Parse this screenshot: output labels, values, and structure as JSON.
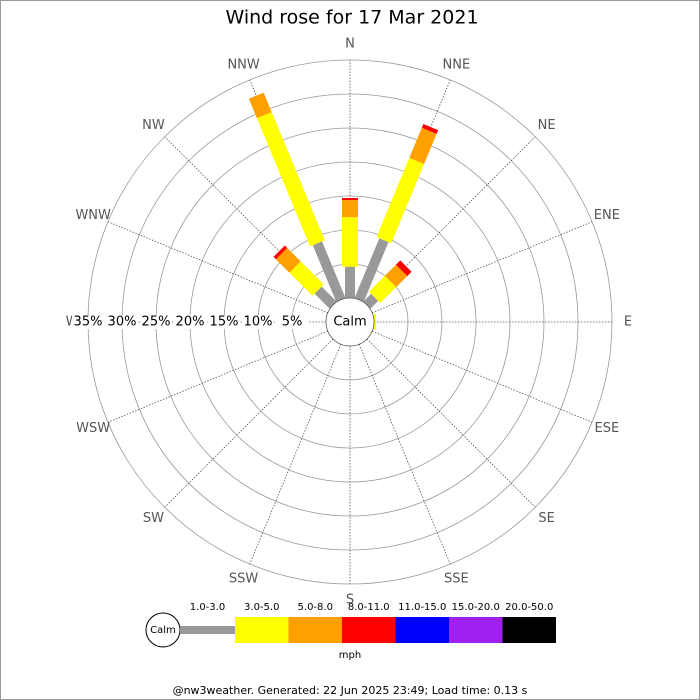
{
  "chart_data": {
    "type": "windrose",
    "title": "Wind rose for 17 Mar 2021",
    "categories": [
      "N",
      "NNE",
      "NE",
      "ENE",
      "E",
      "ESE",
      "SE",
      "SSE",
      "S",
      "SSW",
      "SW",
      "WSW",
      "W",
      "WNW",
      "NW",
      "NNW"
    ],
    "series": [
      {
        "name": "1.0-3.0",
        "color": "#999999",
        "values": [
          4.6,
          9.5,
          1.6,
          0,
          0,
          0,
          0,
          0,
          0,
          0,
          0,
          0,
          0,
          0,
          3.1,
          9.0
        ]
      },
      {
        "name": "3.0-5.0",
        "color": "#ffff00",
        "values": [
          7.3,
          12.6,
          3.3,
          0,
          0.3,
          0,
          0,
          0,
          0,
          0,
          0,
          0,
          0,
          0,
          4.8,
          20.4
        ]
      },
      {
        "name": "5.0-8.0",
        "color": "#ff9f00",
        "values": [
          2.5,
          4.8,
          2.3,
          0,
          0,
          0,
          0,
          0,
          0,
          0,
          0,
          0,
          0,
          0,
          2.8,
          3.1
        ]
      },
      {
        "name": "8.0-11.0",
        "color": "#ff0000",
        "values": [
          0.3,
          0.6,
          0.9,
          0,
          0,
          0,
          0,
          0,
          0,
          0,
          0,
          0,
          0,
          0,
          0.5,
          0
        ]
      },
      {
        "name": "11.0-15.0",
        "color": "#0000ff",
        "values": [
          0,
          0,
          0,
          0,
          0,
          0,
          0,
          0,
          0,
          0,
          0,
          0,
          0,
          0,
          0,
          0
        ]
      },
      {
        "name": "15.0-20.0",
        "color": "#a020f0",
        "values": [
          0,
          0,
          0,
          0,
          0,
          0,
          0,
          0,
          0,
          0,
          0,
          0,
          0,
          0,
          0,
          0
        ]
      },
      {
        "name": "20.0-50.0",
        "color": "#000000",
        "values": [
          0,
          0,
          0,
          0,
          0,
          0,
          0,
          0,
          0,
          0,
          0,
          0,
          0,
          0,
          0,
          0
        ]
      }
    ],
    "rlim": [
      0,
      35
    ],
    "rticks": [
      {
        "value": 5,
        "label": "5%"
      },
      {
        "value": 10,
        "label": "10%"
      },
      {
        "value": 15,
        "label": "15%"
      },
      {
        "value": 20,
        "label": "20%"
      },
      {
        "value": 25,
        "label": "25%"
      },
      {
        "value": 30,
        "label": "30%"
      },
      {
        "value": 35,
        "label": "35%"
      }
    ],
    "calm_label": "Calm",
    "legend_unit": "mph",
    "footer": "@nw3weather. Generated: 22 Jun 2025 23:49; Load time: 0.13 s"
  }
}
